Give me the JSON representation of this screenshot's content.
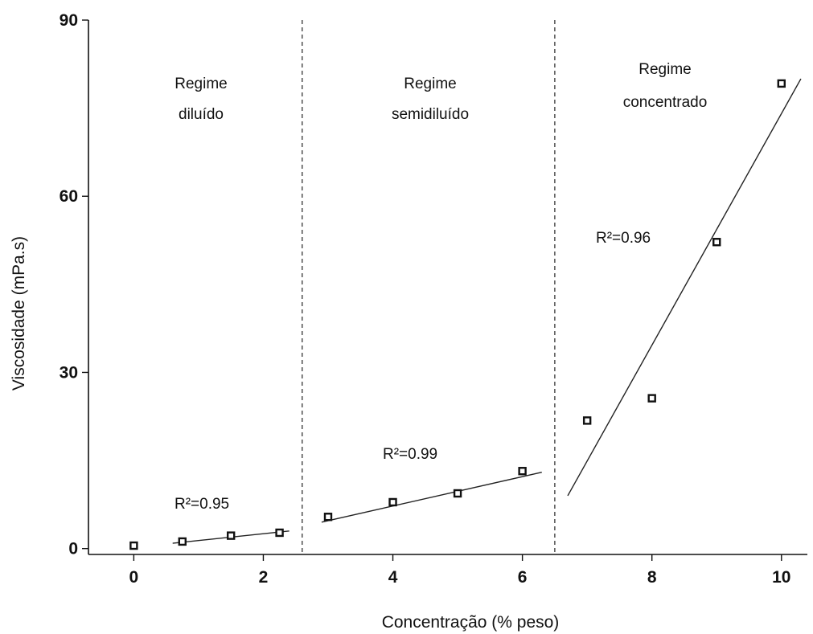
{
  "chart_data": {
    "type": "scatter",
    "title": "",
    "xlabel": "Concentração (% peso)",
    "ylabel": "Viscosidade (mPa.s)",
    "xlim": [
      -0.7,
      10.4
    ],
    "ylim": [
      -1,
      90
    ],
    "xticks": [
      0,
      2,
      4,
      6,
      8,
      10
    ],
    "yticks": [
      0,
      30,
      60,
      90
    ],
    "grid": false,
    "series": [
      {
        "x": [
          0,
          0.75,
          1.5,
          2.25,
          3,
          4,
          5,
          6,
          7,
          8,
          9,
          10
        ],
        "y": [
          0.5,
          1.2,
          2.2,
          2.7,
          5.4,
          7.9,
          9.4,
          13.2,
          21.8,
          25.6,
          52.2,
          79.2
        ]
      }
    ],
    "regime_dividers": [
      2.6,
      6.5
    ],
    "fits": [
      {
        "x": [
          0.6,
          2.4
        ],
        "y": [
          0.9,
          3.0
        ],
        "r2_label": "R²=0.95"
      },
      {
        "x": [
          2.9,
          6.3
        ],
        "y": [
          4.5,
          13.0
        ],
        "r2_label": "R²=0.99"
      },
      {
        "x": [
          6.7,
          10.3
        ],
        "y": [
          9.0,
          80.0
        ],
        "r2_label": "R²=0.96"
      }
    ],
    "regimes": [
      {
        "line1": "Regime",
        "line2": "diluído"
      },
      {
        "line1": "Regime",
        "line2": "semidiluído"
      },
      {
        "line1": "Regime",
        "line2": "concentrado"
      }
    ]
  }
}
